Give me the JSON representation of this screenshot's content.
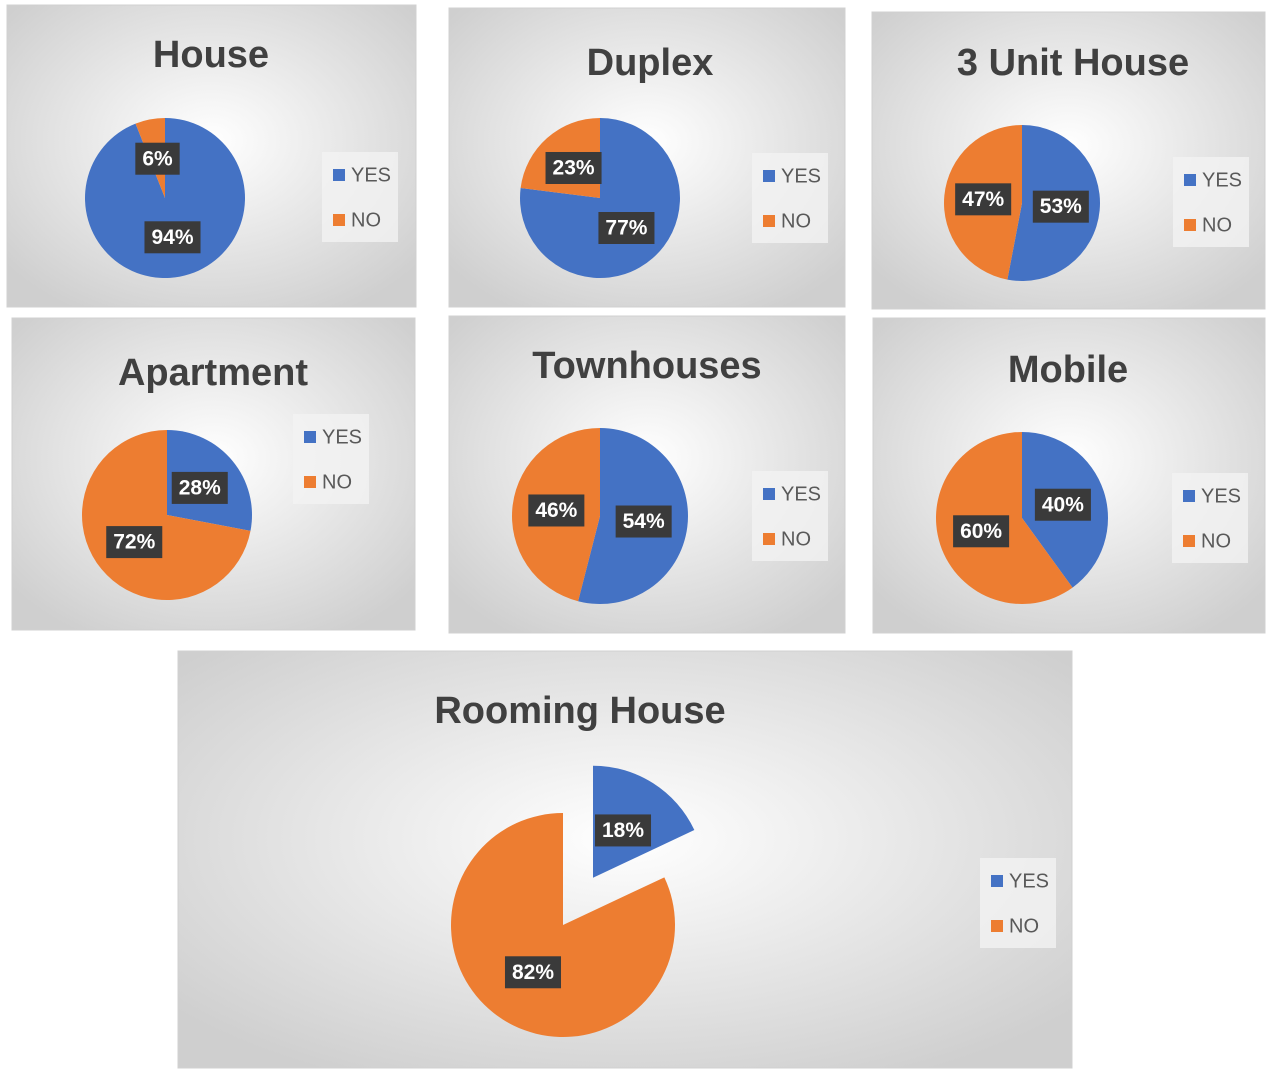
{
  "chart_data": [
    {
      "type": "pie",
      "title": "House",
      "categories": [
        "YES",
        "NO"
      ],
      "values": [
        94,
        6
      ],
      "value_labels": [
        "94%",
        "6%"
      ],
      "colors": [
        "#4472c4",
        "#ed7d31"
      ],
      "legend": "right"
    },
    {
      "type": "pie",
      "title": "Duplex",
      "categories": [
        "YES",
        "NO"
      ],
      "values": [
        77,
        23
      ],
      "value_labels": [
        "77%",
        "23%"
      ],
      "colors": [
        "#4472c4",
        "#ed7d31"
      ],
      "legend": "right"
    },
    {
      "type": "pie",
      "title": "3 Unit House",
      "categories": [
        "YES",
        "NO"
      ],
      "values": [
        53,
        47
      ],
      "value_labels": [
        "53%",
        "47%"
      ],
      "colors": [
        "#4472c4",
        "#ed7d31"
      ],
      "legend": "right"
    },
    {
      "type": "pie",
      "title": "Apartment",
      "categories": [
        "YES",
        "NO"
      ],
      "values": [
        28,
        72
      ],
      "value_labels": [
        "28%",
        "72%"
      ],
      "colors": [
        "#4472c4",
        "#ed7d31"
      ],
      "legend": "right"
    },
    {
      "type": "pie",
      "title": "Townhouses",
      "categories": [
        "YES",
        "NO"
      ],
      "values": [
        54,
        46
      ],
      "value_labels": [
        "54%",
        "46%"
      ],
      "colors": [
        "#4472c4",
        "#ed7d31"
      ],
      "legend": "right"
    },
    {
      "type": "pie",
      "title": "Mobile",
      "categories": [
        "YES",
        "NO"
      ],
      "values": [
        40,
        60
      ],
      "value_labels": [
        "40%",
        "60%"
      ],
      "colors": [
        "#4472c4",
        "#ed7d31"
      ],
      "legend": "right"
    },
    {
      "type": "pie",
      "title": "Rooming House",
      "categories": [
        "YES",
        "NO"
      ],
      "values": [
        18,
        82
      ],
      "value_labels": [
        "18%",
        "82%"
      ],
      "colors": [
        "#4472c4",
        "#ed7d31"
      ],
      "legend": "right",
      "explode": [
        true,
        false
      ]
    }
  ]
}
